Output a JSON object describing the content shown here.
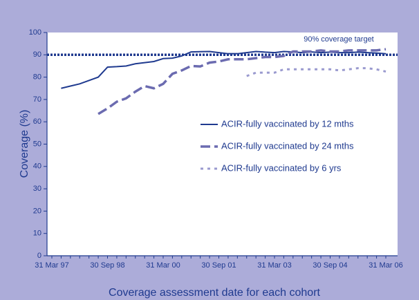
{
  "chart_data": {
    "type": "line",
    "x_label": "Coverage assessment date for each cohort",
    "y_label": "Coverage (%)",
    "categories": [
      "31 Mar 97",
      null,
      null,
      null,
      null,
      null,
      "30 Sep 98",
      null,
      null,
      null,
      null,
      null,
      "31 Mar 00",
      null,
      null,
      null,
      null,
      null,
      "30 Sep 01",
      null,
      null,
      null,
      null,
      null,
      "31 Mar 03",
      null,
      null,
      null,
      null,
      null,
      "30 Sep 04",
      null,
      null,
      null,
      null,
      null,
      "31 Mar 06"
    ],
    "series": [
      {
        "name": "ACIR-fully vaccinated by 12 mths",
        "color": "#1f3a8f",
        "dash": "solid",
        "values": [
          null,
          75,
          76,
          77,
          78.5,
          80,
          84.5,
          84.7,
          85,
          86,
          86.5,
          87,
          88.3,
          88.5,
          89.5,
          91.3,
          91.4,
          91.5,
          91,
          90.5,
          90.5,
          91,
          91.5,
          91.2,
          91,
          91.5,
          91.3,
          91,
          91.3,
          91,
          91.2,
          91,
          91,
          91.2,
          91,
          90.8,
          90.5
        ]
      },
      {
        "name": "ACIR-fully vaccinated by 24 mths",
        "color": "#6b6bb0",
        "dash": "dashed",
        "values": [
          null,
          null,
          null,
          null,
          null,
          63.5,
          66,
          69,
          70.5,
          73.5,
          76,
          75,
          77,
          81.5,
          83,
          85,
          84.8,
          86.5,
          87,
          88,
          88,
          88,
          88.5,
          89,
          89,
          89.5,
          91.5,
          91.5,
          91.5,
          92,
          91.5,
          91.5,
          92,
          92,
          92,
          92,
          92.5
        ]
      },
      {
        "name": "ACIR-fully vaccinated by 6 yrs",
        "color": "#9a9acf",
        "dash": "dotted",
        "values": [
          null,
          null,
          null,
          null,
          null,
          null,
          null,
          null,
          null,
          null,
          null,
          null,
          null,
          null,
          null,
          null,
          null,
          null,
          null,
          null,
          null,
          80.5,
          82,
          82,
          82,
          83.5,
          83.5,
          83.5,
          83.5,
          83.5,
          83.5,
          83,
          83.5,
          84,
          84,
          83.5,
          82.5
        ]
      }
    ],
    "target": {
      "value": 90,
      "label": "90% coverage target",
      "color": "#1f3a8f"
    },
    "ylim": [
      0,
      100
    ],
    "yticks": [
      0,
      10,
      20,
      30,
      40,
      50,
      60,
      70,
      80,
      90,
      100
    ],
    "legend": "right"
  }
}
